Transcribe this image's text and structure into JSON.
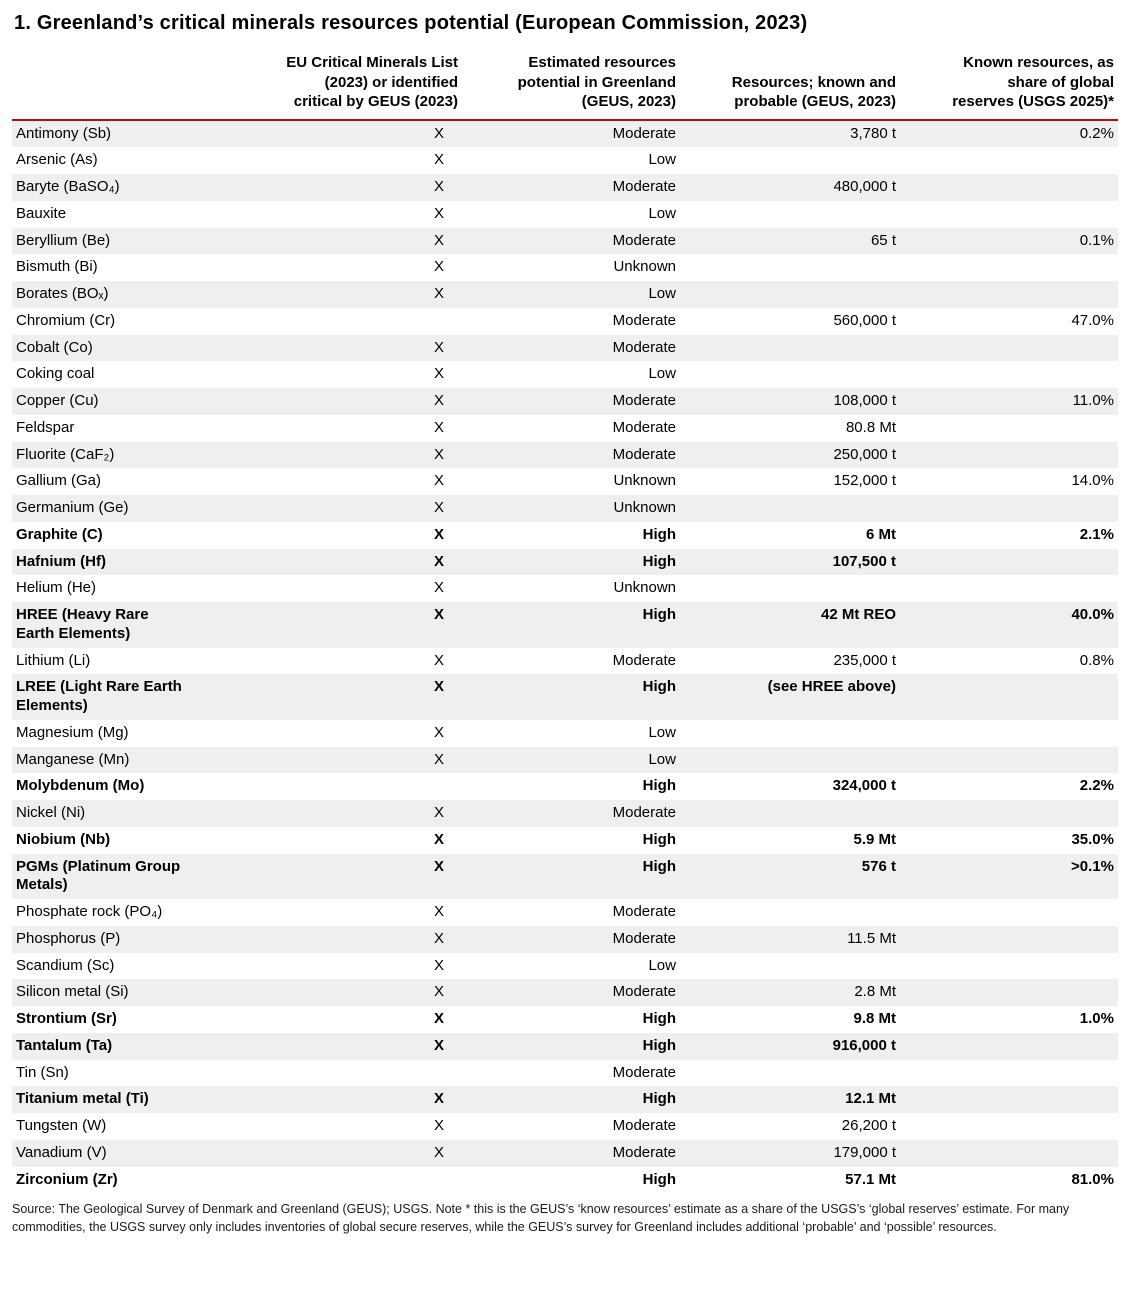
{
  "title": "1. Greenland’s critical minerals resources potential (European Commission, 2023)",
  "colors": {
    "header_rule": "#b01116",
    "row_stripe": "#efefef"
  },
  "table": {
    "columns": [
      {
        "name": "column-header-mineral",
        "label": ""
      },
      {
        "name": "column-header-eu-list",
        "label": "EU Critical Minerals List\n(2023) or identified\ncritical by GEUS (2023)"
      },
      {
        "name": "column-header-potential",
        "label": "Estimated resources\npotential in Greenland\n(GEUS, 2023)"
      },
      {
        "name": "column-header-resources",
        "label": "Resources; known and\nprobable (GEUS, 2023)"
      },
      {
        "name": "column-header-share",
        "label": "Known resources, as\nshare of global\nreserves (USGS 2025)*"
      }
    ],
    "rows": [
      {
        "name": "Antimony (Sb)",
        "eu": "X",
        "potential": "Moderate",
        "resources": "3,780 t",
        "share": "0.2%",
        "bold": false
      },
      {
        "name": "Arsenic (As)",
        "eu": "X",
        "potential": "Low",
        "resources": "",
        "share": "",
        "bold": false
      },
      {
        "name": "Baryte (BaSO₄)",
        "eu": "X",
        "potential": "Moderate",
        "resources": "480,000 t",
        "share": "",
        "bold": false
      },
      {
        "name": "Bauxite",
        "eu": "X",
        "potential": "Low",
        "resources": "",
        "share": "",
        "bold": false
      },
      {
        "name": "Beryllium (Be)",
        "eu": "X",
        "potential": "Moderate",
        "resources": "65 t",
        "share": "0.1%",
        "bold": false
      },
      {
        "name": "Bismuth (Bi)",
        "eu": "X",
        "potential": "Unknown",
        "resources": "",
        "share": "",
        "bold": false
      },
      {
        "name": "Borates (BOₓ)",
        "eu": "X",
        "potential": "Low",
        "resources": "",
        "share": "",
        "bold": false
      },
      {
        "name": "Chromium (Cr)",
        "eu": "",
        "potential": "Moderate",
        "resources": "560,000 t",
        "share": "47.0%",
        "bold": false
      },
      {
        "name": "Cobalt (Co)",
        "eu": "X",
        "potential": "Moderate",
        "resources": "",
        "share": "",
        "bold": false
      },
      {
        "name": "Coking coal",
        "eu": "X",
        "potential": "Low",
        "resources": "",
        "share": "",
        "bold": false
      },
      {
        "name": "Copper (Cu)",
        "eu": "X",
        "potential": "Moderate",
        "resources": "108,000 t",
        "share": "11.0%",
        "bold": false
      },
      {
        "name": "Feldspar",
        "eu": "X",
        "potential": "Moderate",
        "resources": "80.8 Mt",
        "share": "",
        "bold": false
      },
      {
        "name": "Fluorite (CaF₂)",
        "eu": "X",
        "potential": "Moderate",
        "resources": "250,000 t",
        "share": "",
        "bold": false
      },
      {
        "name": "Gallium (Ga)",
        "eu": "X",
        "potential": "Unknown",
        "resources": "152,000 t",
        "share": "14.0%",
        "bold": false
      },
      {
        "name": "Germanium (Ge)",
        "eu": "X",
        "potential": "Unknown",
        "resources": "",
        "share": "",
        "bold": false
      },
      {
        "name": "Graphite (C)",
        "eu": "X",
        "potential": "High",
        "resources": "6 Mt",
        "share": "2.1%",
        "bold": true
      },
      {
        "name": "Hafnium (Hf)",
        "eu": "X",
        "potential": "High",
        "resources": "107,500 t",
        "share": "",
        "bold": true
      },
      {
        "name": "Helium (He)",
        "eu": "X",
        "potential": "Unknown",
        "resources": "",
        "share": "",
        "bold": false
      },
      {
        "name": "HREE (Heavy Rare\nEarth Elements)",
        "eu": "X",
        "potential": "High",
        "resources": "42 Mt REO",
        "share": "40.0%",
        "bold": true
      },
      {
        "name": "Lithium (Li)",
        "eu": "X",
        "potential": "Moderate",
        "resources": "235,000 t",
        "share": "0.8%",
        "bold": false
      },
      {
        "name": "LREE (Light Rare Earth\nElements)",
        "eu": "X",
        "potential": "High",
        "resources": "(see HREE above)",
        "share": "",
        "bold": true
      },
      {
        "name": "Magnesium (Mg)",
        "eu": "X",
        "potential": "Low",
        "resources": "",
        "share": "",
        "bold": false
      },
      {
        "name": "Manganese (Mn)",
        "eu": "X",
        "potential": "Low",
        "resources": "",
        "share": "",
        "bold": false
      },
      {
        "name": "Molybdenum (Mo)",
        "eu": "",
        "potential": "High",
        "resources": "324,000 t",
        "share": "2.2%",
        "bold": true
      },
      {
        "name": "Nickel (Ni)",
        "eu": "X",
        "potential": "Moderate",
        "resources": "",
        "share": "",
        "bold": false
      },
      {
        "name": "Niobium (Nb)",
        "eu": "X",
        "potential": "High",
        "resources": "5.9 Mt",
        "share": "35.0%",
        "bold": true
      },
      {
        "name": "PGMs (Platinum Group\nMetals)",
        "eu": "X",
        "potential": "High",
        "resources": "576 t",
        "share": ">0.1%",
        "bold": true
      },
      {
        "name": "Phosphate rock (PO₄)",
        "eu": "X",
        "potential": "Moderate",
        "resources": "",
        "share": "",
        "bold": false
      },
      {
        "name": "Phosphorus (P)",
        "eu": "X",
        "potential": "Moderate",
        "resources": "11.5 Mt",
        "share": "",
        "bold": false
      },
      {
        "name": "Scandium (Sc)",
        "eu": "X",
        "potential": "Low",
        "resources": "",
        "share": "",
        "bold": false
      },
      {
        "name": "Silicon metal (Si)",
        "eu": "X",
        "potential": "Moderate",
        "resources": "2.8 Mt",
        "share": "",
        "bold": false
      },
      {
        "name": "Strontium (Sr)",
        "eu": "X",
        "potential": "High",
        "resources": "9.8 Mt",
        "share": "1.0%",
        "bold": true
      },
      {
        "name": "Tantalum (Ta)",
        "eu": "X",
        "potential": "High",
        "resources": "916,000 t",
        "share": "",
        "bold": true
      },
      {
        "name": "Tin (Sn)",
        "eu": "",
        "potential": "Moderate",
        "resources": "",
        "share": "",
        "bold": false
      },
      {
        "name": "Titanium metal (Ti)",
        "eu": "X",
        "potential": "High",
        "resources": "12.1 Mt",
        "share": "",
        "bold": true
      },
      {
        "name": "Tungsten (W)",
        "eu": "X",
        "potential": "Moderate",
        "resources": "26,200 t",
        "share": "",
        "bold": false
      },
      {
        "name": "Vanadium (V)",
        "eu": "X",
        "potential": "Moderate",
        "resources": "179,000 t",
        "share": "",
        "bold": false
      },
      {
        "name": "Zirconium (Zr)",
        "eu": "",
        "potential": "High",
        "resources": "57.1 Mt",
        "share": "81.0%",
        "bold": true
      }
    ]
  },
  "footnote": "Source: The Geological Survey of Denmark and Greenland (GEUS); USGS. Note * this is the GEUS’s ‘know resources’ estimate as a share of the USGS’s ‘global reserves’ estimate. For many commodities, the USGS survey only includes inventories of global secure reserves, while the GEUS’s survey for Greenland includes additional ‘probable’ and ‘possible’ resources."
}
